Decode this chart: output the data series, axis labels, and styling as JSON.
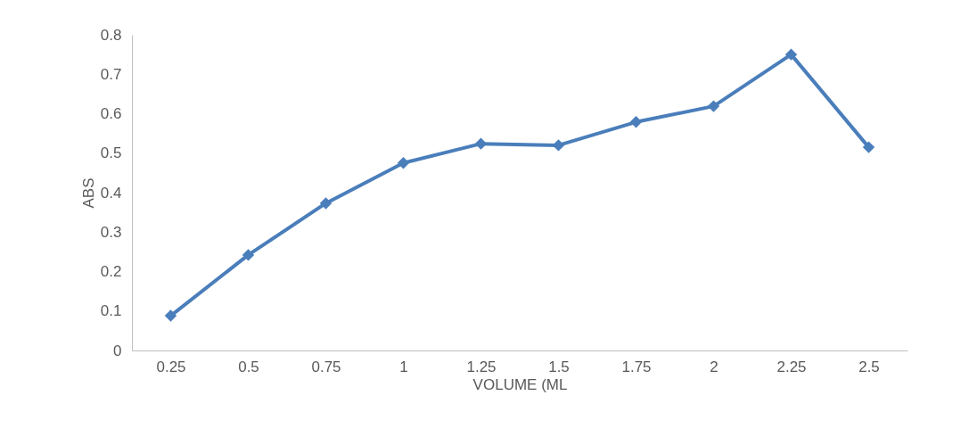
{
  "chart_data": {
    "type": "line",
    "xlabel": "VOLUME (ML",
    "ylabel": "ABS",
    "categories": [
      "0.25",
      "0.5",
      "0.75",
      "1",
      "1.25",
      "1.5",
      "1.75",
      "2",
      "2.25",
      "2.5"
    ],
    "series": [
      {
        "color": "#4a7ebb",
        "values": [
          0.088,
          0.242,
          0.373,
          0.475,
          0.524,
          0.52,
          0.579,
          0.619,
          0.75,
          0.515
        ]
      }
    ],
    "ylim": [
      0,
      0.8
    ],
    "yticks": [
      0,
      0.1,
      0.2,
      0.3,
      0.4,
      0.5,
      0.6,
      0.7,
      0.8
    ],
    "grid": false,
    "marker": "diamond",
    "line_style": "solid"
  }
}
